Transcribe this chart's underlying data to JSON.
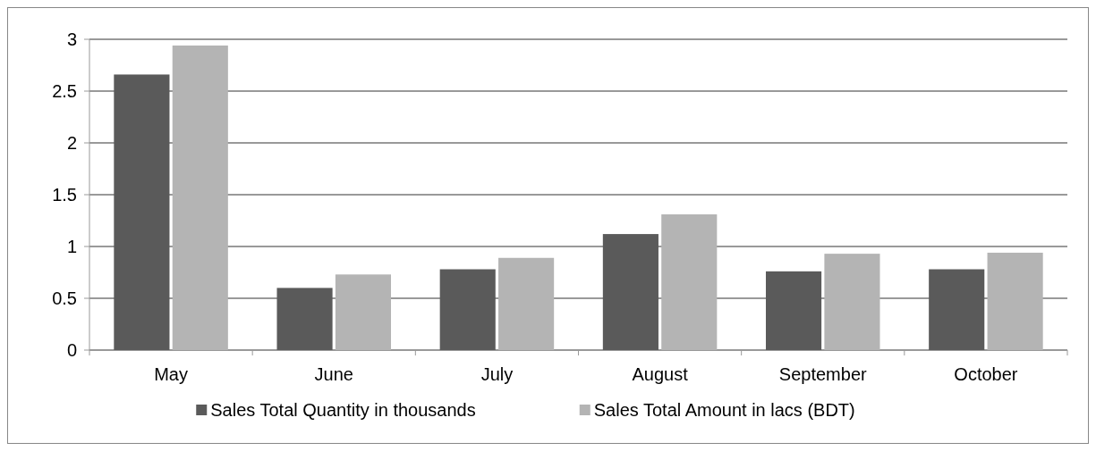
{
  "chart_data": {
    "type": "bar",
    "categories": [
      "May",
      "June",
      "July",
      "August",
      "September",
      "October"
    ],
    "series": [
      {
        "name": "Sales Total Quantity in thousands",
        "color": "#5a5a5a",
        "values": [
          2.66,
          0.6,
          0.78,
          1.12,
          0.76,
          0.78
        ]
      },
      {
        "name": "Sales Total Amount in lacs (BDT)",
        "color": "#b4b4b4",
        "values": [
          2.94,
          0.73,
          0.89,
          1.31,
          0.93,
          0.94
        ]
      }
    ],
    "ylim": [
      0,
      3
    ],
    "yticks": [
      0,
      0.5,
      1,
      1.5,
      2,
      2.5,
      3
    ],
    "grid": "y",
    "legend": "bottom"
  }
}
